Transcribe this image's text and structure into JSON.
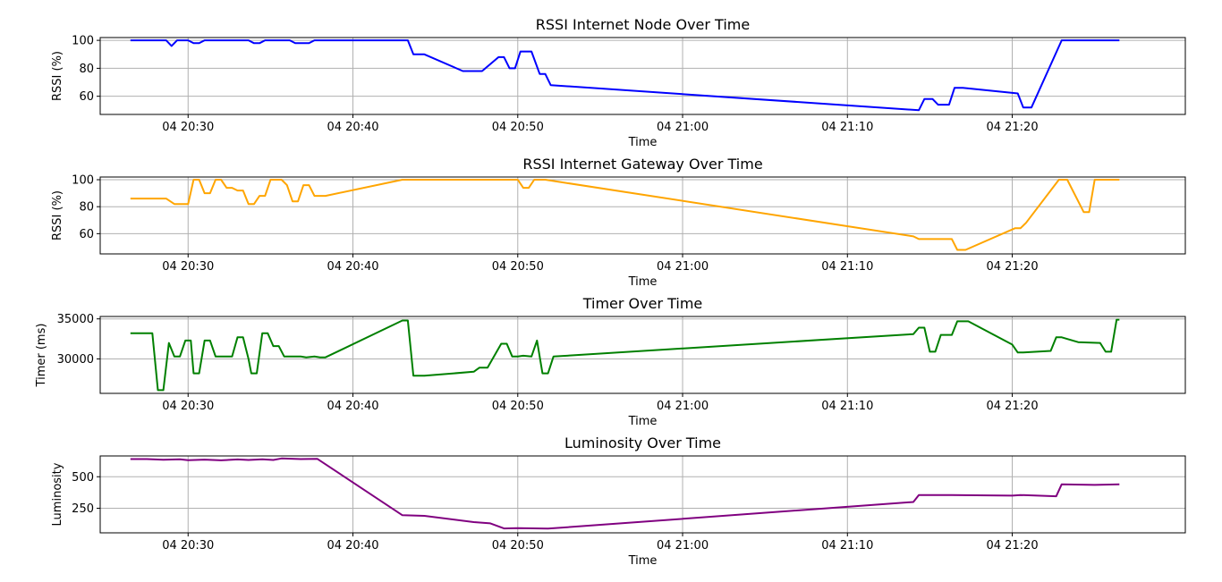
{
  "chart_data": [
    {
      "type": "line",
      "title": "RSSI Internet Node Over Time",
      "xlabel": "Time",
      "ylabel": "RSSI (%)",
      "color": "#0000ff",
      "xlim": [
        "04 20:24:40",
        "04 21:30:30"
      ],
      "ylim": [
        47,
        102
      ],
      "xticks": [
        "04 20:30",
        "04 20:40",
        "04 20:50",
        "04 21:00",
        "04 21:10",
        "04 21:20"
      ],
      "yticks": [
        60,
        80,
        100
      ],
      "grid": true,
      "points": [
        [
          "04 20:26:30",
          100
        ],
        [
          "04 20:28:40",
          100
        ],
        [
          "04 20:29:00",
          96
        ],
        [
          "04 20:29:20",
          100
        ],
        [
          "04 20:30:00",
          100
        ],
        [
          "04 20:30:20",
          98
        ],
        [
          "04 20:30:40",
          98
        ],
        [
          "04 20:31:00",
          100
        ],
        [
          "04 20:33:40",
          100
        ],
        [
          "04 20:34:00",
          98
        ],
        [
          "04 20:34:20",
          98
        ],
        [
          "04 20:34:40",
          100
        ],
        [
          "04 20:36:10",
          100
        ],
        [
          "04 20:36:30",
          98
        ],
        [
          "04 20:37:20",
          98
        ],
        [
          "04 20:37:40",
          100
        ],
        [
          "04 20:43:20",
          100
        ],
        [
          "04 20:43:40",
          90
        ],
        [
          "04 20:44:20",
          90
        ],
        [
          "04 20:46:40",
          78
        ],
        [
          "04 20:47:50",
          78
        ],
        [
          "04 20:48:50",
          88
        ],
        [
          "04 20:49:10",
          88
        ],
        [
          "04 20:49:30",
          80
        ],
        [
          "04 20:49:50",
          80
        ],
        [
          "04 20:50:10",
          92
        ],
        [
          "04 20:50:30",
          92
        ],
        [
          "04 20:50:50",
          92
        ],
        [
          "04 20:51:20",
          76
        ],
        [
          "04 20:51:40",
          76
        ],
        [
          "04 20:52:00",
          68
        ],
        [
          "04 21:14:20",
          50
        ],
        [
          "04 21:14:40",
          58
        ],
        [
          "04 21:15:10",
          58
        ],
        [
          "04 21:15:30",
          54
        ],
        [
          "04 21:16:10",
          54
        ],
        [
          "04 21:16:30",
          66
        ],
        [
          "04 21:17:00",
          66
        ],
        [
          "04 21:20:20",
          62
        ],
        [
          "04 21:20:40",
          52
        ],
        [
          "04 21:21:10",
          52
        ],
        [
          "04 21:23:00",
          100
        ],
        [
          "04 21:26:30",
          100
        ]
      ]
    },
    {
      "type": "line",
      "title": "RSSI Internet Gateway Over Time",
      "xlabel": "Time",
      "ylabel": "RSSI (%)",
      "color": "#ffa500",
      "xlim": [
        "04 20:24:40",
        "04 21:30:30"
      ],
      "ylim": [
        45,
        102
      ],
      "xticks": [
        "04 20:30",
        "04 20:40",
        "04 20:50",
        "04 21:00",
        "04 21:10",
        "04 21:20"
      ],
      "yticks": [
        60,
        80,
        100
      ],
      "grid": true,
      "points": [
        [
          "04 20:26:30",
          86
        ],
        [
          "04 20:28:40",
          86
        ],
        [
          "04 20:29:10",
          82
        ],
        [
          "04 20:30:00",
          82
        ],
        [
          "04 20:30:20",
          100
        ],
        [
          "04 20:30:40",
          100
        ],
        [
          "04 20:31:00",
          90
        ],
        [
          "04 20:31:20",
          90
        ],
        [
          "04 20:31:40",
          100
        ],
        [
          "04 20:32:00",
          100
        ],
        [
          "04 20:32:20",
          94
        ],
        [
          "04 20:32:40",
          94
        ],
        [
          "04 20:33:00",
          92
        ],
        [
          "04 20:33:20",
          92
        ],
        [
          "04 20:33:40",
          82
        ],
        [
          "04 20:34:00",
          82
        ],
        [
          "04 20:34:20",
          88
        ],
        [
          "04 20:34:40",
          88
        ],
        [
          "04 20:35:00",
          100
        ],
        [
          "04 20:35:40",
          100
        ],
        [
          "04 20:36:00",
          96
        ],
        [
          "04 20:36:20",
          84
        ],
        [
          "04 20:36:40",
          84
        ],
        [
          "04 20:37:00",
          96
        ],
        [
          "04 20:37:20",
          96
        ],
        [
          "04 20:37:40",
          88
        ],
        [
          "04 20:38:20",
          88
        ],
        [
          "04 20:43:00",
          100
        ],
        [
          "04 20:50:00",
          100
        ],
        [
          "04 20:50:20",
          94
        ],
        [
          "04 20:50:40",
          94
        ],
        [
          "04 20:51:00",
          100
        ],
        [
          "04 20:51:40",
          100
        ],
        [
          "04 21:14:00",
          58
        ],
        [
          "04 21:14:20",
          56
        ],
        [
          "04 21:16:20",
          56
        ],
        [
          "04 21:16:40",
          48
        ],
        [
          "04 21:17:10",
          48
        ],
        [
          "04 21:20:10",
          64
        ],
        [
          "04 21:20:30",
          64
        ],
        [
          "04 21:20:50",
          68
        ],
        [
          "04 21:22:50",
          100
        ],
        [
          "04 21:23:20",
          100
        ],
        [
          "04 21:24:20",
          76
        ],
        [
          "04 21:24:40",
          76
        ],
        [
          "04 21:25:00",
          100
        ],
        [
          "04 21:26:30",
          100
        ]
      ]
    },
    {
      "type": "line",
      "title": "Timer Over Time",
      "xlabel": "Time",
      "ylabel": "Timer (ms)",
      "color": "#008000",
      "xlim": [
        "04 20:24:40",
        "04 21:30:30"
      ],
      "ylim": [
        25700,
        35300
      ],
      "xticks": [
        "04 20:30",
        "04 20:40",
        "04 20:50",
        "04 21:00",
        "04 21:10",
        "04 21:20"
      ],
      "yticks": [
        30000,
        35000
      ],
      "grid": true,
      "points": [
        [
          "04 20:26:30",
          33200
        ],
        [
          "04 20:27:50",
          33200
        ],
        [
          "04 20:28:10",
          26100
        ],
        [
          "04 20:28:30",
          26100
        ],
        [
          "04 20:28:50",
          32000
        ],
        [
          "04 20:29:10",
          30300
        ],
        [
          "04 20:29:30",
          30300
        ],
        [
          "04 20:29:50",
          32300
        ],
        [
          "04 20:30:10",
          32300
        ],
        [
          "04 20:30:20",
          28200
        ],
        [
          "04 20:30:40",
          28200
        ],
        [
          "04 20:31:00",
          32300
        ],
        [
          "04 20:31:20",
          32300
        ],
        [
          "04 20:31:40",
          30300
        ],
        [
          "04 20:32:40",
          30300
        ],
        [
          "04 20:33:00",
          32700
        ],
        [
          "04 20:33:20",
          32700
        ],
        [
          "04 20:33:40",
          30000
        ],
        [
          "04 20:33:50",
          28200
        ],
        [
          "04 20:34:10",
          28200
        ],
        [
          "04 20:34:30",
          33200
        ],
        [
          "04 20:34:50",
          33200
        ],
        [
          "04 20:35:10",
          31600
        ],
        [
          "04 20:35:30",
          31600
        ],
        [
          "04 20:35:50",
          30300
        ],
        [
          "04 20:36:50",
          30300
        ],
        [
          "04 20:37:10",
          30200
        ],
        [
          "04 20:37:40",
          30300
        ],
        [
          "04 20:38:00",
          30200
        ],
        [
          "04 20:38:20",
          30200
        ],
        [
          "04 20:43:00",
          34800
        ],
        [
          "04 20:43:20",
          34800
        ],
        [
          "04 20:43:40",
          27900
        ],
        [
          "04 20:44:20",
          27900
        ],
        [
          "04 20:47:20",
          28400
        ],
        [
          "04 20:47:40",
          28900
        ],
        [
          "04 20:48:10",
          28900
        ],
        [
          "04 20:49:00",
          31900
        ],
        [
          "04 20:49:20",
          31900
        ],
        [
          "04 20:49:40",
          30300
        ],
        [
          "04 20:50:00",
          30300
        ],
        [
          "04 20:50:20",
          30400
        ],
        [
          "04 20:50:50",
          30300
        ],
        [
          "04 20:51:10",
          32300
        ],
        [
          "04 20:51:30",
          28200
        ],
        [
          "04 20:51:50",
          28200
        ],
        [
          "04 20:52:10",
          30300
        ],
        [
          "04 21:14:00",
          33100
        ],
        [
          "04 21:14:20",
          33900
        ],
        [
          "04 21:14:40",
          33900
        ],
        [
          "04 21:15:00",
          30900
        ],
        [
          "04 21:15:20",
          30900
        ],
        [
          "04 21:15:40",
          33000
        ],
        [
          "04 21:16:20",
          33000
        ],
        [
          "04 21:16:40",
          34700
        ],
        [
          "04 21:17:20",
          34700
        ],
        [
          "04 21:20:00",
          31800
        ],
        [
          "04 21:20:20",
          30800
        ],
        [
          "04 21:20:40",
          30800
        ],
        [
          "04 21:22:20",
          31000
        ],
        [
          "04 21:22:40",
          32700
        ],
        [
          "04 21:23:00",
          32700
        ],
        [
          "04 21:24:00",
          32100
        ],
        [
          "04 21:25:20",
          32000
        ],
        [
          "04 21:25:40",
          30900
        ],
        [
          "04 21:26:00",
          30900
        ],
        [
          "04 21:26:20",
          34900
        ],
        [
          "04 21:26:30",
          34900
        ]
      ]
    },
    {
      "type": "line",
      "title": "Luminosity Over Time",
      "xlabel": "Time",
      "ylabel": "Luminosity",
      "color": "#800080",
      "xlim": [
        "04 20:24:40",
        "04 21:30:30"
      ],
      "ylim": [
        55,
        665
      ],
      "xticks": [
        "04 20:30",
        "04 20:40",
        "04 20:50",
        "04 21:00",
        "04 21:10",
        "04 21:20"
      ],
      "yticks": [
        250,
        500
      ],
      "grid": true,
      "points": [
        [
          "04 20:26:30",
          640
        ],
        [
          "04 20:27:30",
          640
        ],
        [
          "04 20:28:30",
          635
        ],
        [
          "04 20:29:30",
          638
        ],
        [
          "04 20:30:00",
          632
        ],
        [
          "04 20:31:00",
          636
        ],
        [
          "04 20:32:00",
          630
        ],
        [
          "04 20:33:00",
          637
        ],
        [
          "04 20:33:40",
          633
        ],
        [
          "04 20:34:30",
          638
        ],
        [
          "04 20:35:10",
          633
        ],
        [
          "04 20:35:40",
          645
        ],
        [
          "04 20:36:50",
          640
        ],
        [
          "04 20:37:50",
          642
        ],
        [
          "04 20:43:00",
          195
        ],
        [
          "04 20:44:20",
          190
        ],
        [
          "04 20:47:20",
          140
        ],
        [
          "04 20:48:20",
          130
        ],
        [
          "04 20:49:10",
          90
        ],
        [
          "04 20:50:00",
          92
        ],
        [
          "04 20:51:50",
          88
        ],
        [
          "04 21:14:00",
          300
        ],
        [
          "04 21:14:20",
          355
        ],
        [
          "04 21:16:20",
          355
        ],
        [
          "04 21:20:00",
          350
        ],
        [
          "04 21:20:30",
          355
        ],
        [
          "04 21:22:40",
          345
        ],
        [
          "04 21:23:00",
          440
        ],
        [
          "04 21:25:00",
          435
        ],
        [
          "04 21:26:30",
          440
        ]
      ]
    }
  ]
}
